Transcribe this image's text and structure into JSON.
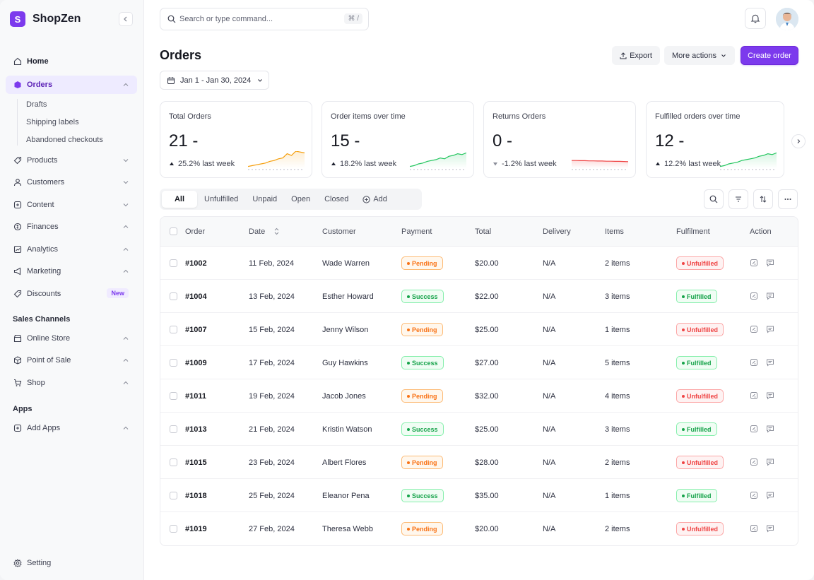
{
  "brand": {
    "logo_letter": "S",
    "name": "ShopZen",
    "accent": "#7c3aed"
  },
  "sidebar": {
    "items": [
      {
        "label": "Home",
        "icon": "home-icon"
      },
      {
        "label": "Orders",
        "icon": "orders-icon"
      },
      {
        "label": "Products",
        "icon": "tag-icon"
      },
      {
        "label": "Customers",
        "icon": "user-icon"
      },
      {
        "label": "Content",
        "icon": "content-icon"
      },
      {
        "label": "Finances",
        "icon": "finance-icon"
      },
      {
        "label": "Analytics",
        "icon": "analytics-icon"
      },
      {
        "label": "Marketing",
        "icon": "megaphone-icon"
      },
      {
        "label": "Discounts",
        "icon": "discount-icon",
        "badge": "New"
      }
    ],
    "order_subitems": [
      "Drafts",
      "Shipping labels",
      "Abandoned checkouts"
    ],
    "sales_channels_label": "Sales Channels",
    "sales_channels": [
      {
        "label": "Online Store",
        "icon": "store-icon"
      },
      {
        "label": "Point of Sale",
        "icon": "box-icon"
      },
      {
        "label": "Shop",
        "icon": "cart-icon"
      }
    ],
    "apps_label": "Apps",
    "apps": [
      {
        "label": "Add Apps",
        "icon": "plus-square-icon"
      }
    ],
    "setting_label": "Setting"
  },
  "header": {
    "search_placeholder": "Search or type command...",
    "search_shortcut": "⌘ /"
  },
  "page": {
    "title": "Orders",
    "export_label": "Export",
    "more_actions_label": "More actions",
    "create_label": "Create order",
    "date_range": "Jan 1 - Jan 30, 2024"
  },
  "stats": [
    {
      "label": "Total Orders",
      "value": "21 -",
      "change": "25.2% last week",
      "direction": "up",
      "color": "#f59e0b"
    },
    {
      "label": "Order items over time",
      "value": "15 -",
      "change": "18.2% last week",
      "direction": "up",
      "color": "#22c55e"
    },
    {
      "label": "Returns Orders",
      "value": "0 -",
      "change": "-1.2% last week",
      "direction": "down",
      "color": "#ef4444"
    },
    {
      "label": "Fulfilled orders over time",
      "value": "12 -",
      "change": "12.2% last week",
      "direction": "up",
      "color": "#22c55e"
    }
  ],
  "tabs": [
    "All",
    "Unfulfilled",
    "Unpaid",
    "Open",
    "Closed",
    "Add"
  ],
  "table": {
    "columns": [
      "Order",
      "Date",
      "Customer",
      "Payment",
      "Total",
      "Delivery",
      "Items",
      "Fulfilment",
      "Action"
    ],
    "rows": [
      {
        "order": "#1002",
        "date": "11 Feb, 2024",
        "customer": "Wade Warren",
        "payment": "Pending",
        "total": "$20.00",
        "delivery": "N/A",
        "items": "2 items",
        "fulfilment": "Unfulfilled"
      },
      {
        "order": "#1004",
        "date": "13 Feb, 2024",
        "customer": "Esther Howard",
        "payment": "Success",
        "total": "$22.00",
        "delivery": "N/A",
        "items": "3 items",
        "fulfilment": "Fulfilled"
      },
      {
        "order": "#1007",
        "date": "15 Feb, 2024",
        "customer": "Jenny Wilson",
        "payment": "Pending",
        "total": "$25.00",
        "delivery": "N/A",
        "items": "1 items",
        "fulfilment": "Unfulfilled"
      },
      {
        "order": "#1009",
        "date": "17 Feb, 2024",
        "customer": "Guy Hawkins",
        "payment": "Success",
        "total": "$27.00",
        "delivery": "N/A",
        "items": "5 items",
        "fulfilment": "Fulfilled"
      },
      {
        "order": "#1011",
        "date": "19 Feb, 2024",
        "customer": "Jacob Jones",
        "payment": "Pending",
        "total": "$32.00",
        "delivery": "N/A",
        "items": "4 items",
        "fulfilment": "Unfulfilled"
      },
      {
        "order": "#1013",
        "date": "21 Feb, 2024",
        "customer": "Kristin Watson",
        "payment": "Success",
        "total": "$25.00",
        "delivery": "N/A",
        "items": "3 items",
        "fulfilment": "Fulfilled"
      },
      {
        "order": "#1015",
        "date": "23 Feb, 2024",
        "customer": "Albert Flores",
        "payment": "Pending",
        "total": "$28.00",
        "delivery": "N/A",
        "items": "2 items",
        "fulfilment": "Unfulfilled"
      },
      {
        "order": "#1018",
        "date": "25 Feb, 2024",
        "customer": "Eleanor Pena",
        "payment": "Success",
        "total": "$35.00",
        "delivery": "N/A",
        "items": "1 items",
        "fulfilment": "Fulfilled"
      },
      {
        "order": "#1019",
        "date": "27 Feb, 2024",
        "customer": "Theresa Webb",
        "payment": "Pending",
        "total": "$20.00",
        "delivery": "N/A",
        "items": "2 items",
        "fulfilment": "Unfulfilled"
      }
    ]
  }
}
